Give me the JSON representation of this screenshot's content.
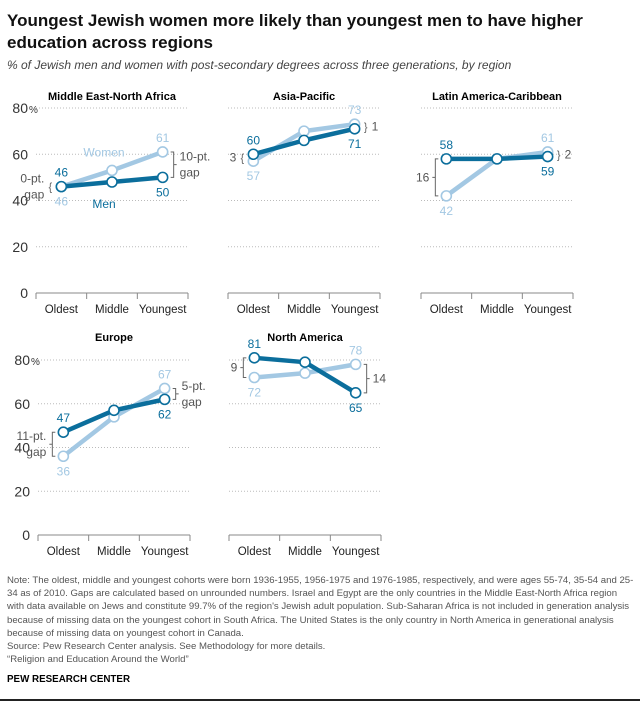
{
  "header": {
    "title": "Youngest Jewish women more likely than youngest men to have higher education across regions",
    "subtitle": "% of Jewish men and women with post-secondary degrees across three generations, by region"
  },
  "colors": {
    "men": "#0b6e9c",
    "women": "#a3c8e3",
    "grid": "#bbbbbb",
    "annotation": "#555555"
  },
  "chart_data": {
    "type": "line",
    "categories": [
      "Oldest",
      "Middle",
      "Youngest"
    ],
    "ylim": [
      0,
      80
    ],
    "yticks": [
      "0",
      "20",
      "40",
      "60",
      "80"
    ],
    "y_unit": "%",
    "grid": true,
    "panels": [
      {
        "title": "Middle East-North Africa",
        "series": [
          {
            "name": "Men",
            "values": [
              46,
              48,
              50
            ]
          },
          {
            "name": "Women",
            "values": [
              46,
              53,
              61
            ]
          }
        ],
        "value_labels": {
          "men": [
            "46",
            "50"
          ],
          "women": [
            "46",
            "61"
          ]
        },
        "gap_left": [
          "0-pt.",
          "gap"
        ],
        "gap_right": [
          "10-pt.",
          "gap"
        ],
        "show_series_names": true
      },
      {
        "title": "Asia-Pacific",
        "series": [
          {
            "name": "Men",
            "values": [
              60,
              66,
              71
            ]
          },
          {
            "name": "Women",
            "values": [
              57,
              70,
              73
            ]
          }
        ],
        "value_labels": {
          "men": [
            "60",
            "71"
          ],
          "women": [
            "57",
            "73"
          ]
        },
        "gap_left": [
          "3"
        ],
        "gap_right": [
          "1"
        ]
      },
      {
        "title": "Latin America-Caribbean",
        "series": [
          {
            "name": "Men",
            "values": [
              58,
              58,
              59
            ]
          },
          {
            "name": "Women",
            "values": [
              42,
              58,
              61
            ]
          }
        ],
        "value_labels": {
          "men": [
            "58",
            "59"
          ],
          "women": [
            "42",
            "61"
          ]
        },
        "gap_left": [
          "16"
        ],
        "gap_right": [
          "2"
        ]
      },
      {
        "title": "Europe",
        "series": [
          {
            "name": "Men",
            "values": [
              47,
              57,
              62
            ]
          },
          {
            "name": "Women",
            "values": [
              36,
              54,
              67
            ]
          }
        ],
        "value_labels": {
          "men": [
            "47",
            "62"
          ],
          "women": [
            "36",
            "67"
          ]
        },
        "gap_left": [
          "11-pt.",
          "gap"
        ],
        "gap_right": [
          "5-pt.",
          "gap"
        ]
      },
      {
        "title": "North America",
        "series": [
          {
            "name": "Men",
            "values": [
              81,
              79,
              65
            ]
          },
          {
            "name": "Women",
            "values": [
              72,
              74,
              78
            ]
          }
        ],
        "value_labels": {
          "men": [
            "81",
            "65"
          ],
          "women": [
            "72",
            "78"
          ]
        },
        "gap_left": [
          "9"
        ],
        "gap_right": [
          "14"
        ]
      }
    ]
  },
  "notes": {
    "note": "Note: The oldest, middle and youngest cohorts were born 1936-1955, 1956-1975 and 1976-1985, respectively, and were ages 55-74, 35-54 and 25-34 as of 2010. Gaps are calculated based on unrounded numbers. Israel and Egypt are the only countries in the Middle East-North Africa region with data available on Jews and constitute 99.7% of the region's Jewish adult population. Sub-Saharan Africa is not included in generation analysis because of missing data on the youngest cohort in South Africa. The United States is the only country in North America in generational analysis because of missing data on youngest cohort in Canada.",
    "source": "Source: Pew Research Center analysis. See Methodology for more details.",
    "report": "“Religion and Education Around the World”",
    "brand": "PEW RESEARCH CENTER"
  }
}
